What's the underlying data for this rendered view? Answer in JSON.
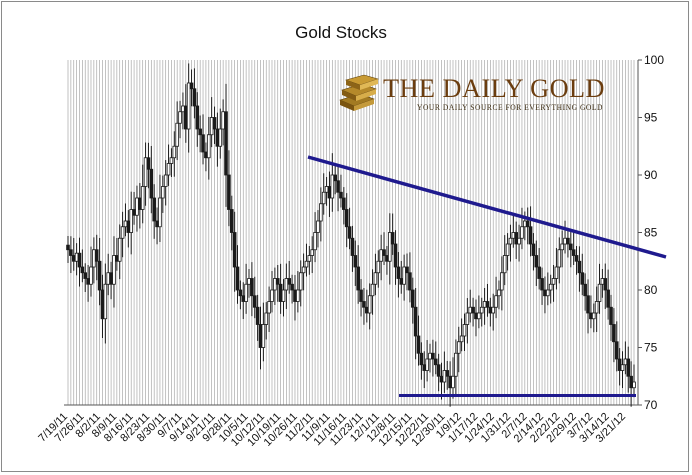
{
  "chart_data": {
    "type": "candlestick",
    "title": "Gold Stocks",
    "xlabel": "",
    "ylabel": "",
    "ylim": [
      70,
      100
    ],
    "y_ticks": [
      70,
      75,
      80,
      85,
      90,
      95,
      100
    ],
    "y_axis_side": "right",
    "grid": "vertical lines at every trading day",
    "x_tick_labels": [
      "7/19/11",
      "7/26/11",
      "8/2/11",
      "8/9/11",
      "8/16/11",
      "8/23/11",
      "8/30/11",
      "9/7/11",
      "9/14/11",
      "9/21/11",
      "9/28/11",
      "10/5/11",
      "10/12/11",
      "10/19/11",
      "10/26/11",
      "11/2/11",
      "11/9/11",
      "11/16/11",
      "11/23/11",
      "12/1/11",
      "12/8/11",
      "12/15/11",
      "12/22/11",
      "12/30/11",
      "1/9/12",
      "1/17/12",
      "1/24/12",
      "1/31/12",
      "2/7/12",
      "2/14/12",
      "2/22/12",
      "2/29/12",
      "3/7/12",
      "3/14/12",
      "3/21/12"
    ],
    "closes": [
      83.5,
      83.0,
      82.5,
      83.2,
      82.0,
      81.5,
      81.0,
      80.5,
      82.0,
      83.5,
      82.5,
      80.0,
      77.5,
      80.5,
      81.5,
      80.5,
      83.0,
      82.5,
      84.5,
      85.5,
      86.0,
      85.0,
      87.0,
      86.5,
      88.0,
      87.0,
      89.0,
      91.5,
      90.5,
      88.0,
      86.0,
      85.5,
      88.0,
      89.0,
      90.0,
      91.0,
      91.5,
      92.5,
      94.5,
      95.5,
      96.0,
      94.0,
      98.0,
      97.5,
      96.0,
      94.0,
      93.5,
      92.0,
      91.5,
      93.5,
      95.0,
      94.0,
      92.5,
      94.0,
      95.5,
      90.0,
      87.0,
      85.0,
      82.0,
      80.0,
      79.5,
      79.0,
      80.5,
      81.0,
      79.5,
      78.5,
      77.0,
      75.0,
      77.0,
      78.0,
      79.0,
      80.0,
      81.0,
      80.5,
      79.0,
      80.0,
      81.0,
      80.5,
      80.0,
      79.0,
      80.0,
      81.5,
      82.0,
      82.5,
      83.0,
      83.5,
      85.0,
      86.0,
      87.5,
      88.5,
      89.0,
      88.0,
      90.0,
      89.5,
      88.5,
      88.0,
      87.0,
      85.5,
      84.5,
      83.0,
      82.0,
      80.0,
      79.0,
      78.5,
      78.0,
      79.5,
      80.5,
      81.5,
      82.5,
      83.5,
      83.0,
      82.5,
      85.0,
      84.0,
      82.0,
      81.0,
      80.5,
      82.0,
      81.5,
      80.0,
      78.5,
      76.0,
      74.5,
      73.5,
      73.0,
      74.0,
      74.5,
      74.0,
      73.5,
      72.5,
      72.0,
      73.0,
      72.5,
      71.5,
      72.5,
      74.5,
      75.5,
      76.0,
      77.0,
      78.0,
      78.5,
      78.0,
      77.5,
      78.0,
      78.5,
      79.0,
      78.5,
      78.0,
      78.5,
      79.5,
      80.0,
      81.5,
      83.0,
      84.0,
      84.5,
      85.0,
      84.0,
      84.5,
      85.5,
      86.0,
      85.5,
      84.0,
      83.0,
      82.0,
      81.0,
      80.0,
      79.5,
      80.0,
      80.5,
      81.0,
      82.0,
      83.5,
      84.0,
      84.5,
      84.0,
      83.5,
      83.0,
      82.5,
      81.5,
      80.5,
      79.5,
      78.0,
      77.5,
      78.0,
      79.0,
      80.5,
      81.0,
      80.0,
      78.5,
      77.0,
      75.5,
      74.0,
      73.0,
      73.5,
      74.0,
      72.5,
      71.5,
      72.0
    ]
  },
  "logo": {
    "name": "THE DAILY GOLD",
    "tagline": "YOUR DAILY SOURCE FOR EVERYTHING GOLD",
    "color": "#6b3d0f"
  },
  "annotations": {
    "resistance_color": "#1f1a8e",
    "support_color": "#1f1a8e"
  }
}
